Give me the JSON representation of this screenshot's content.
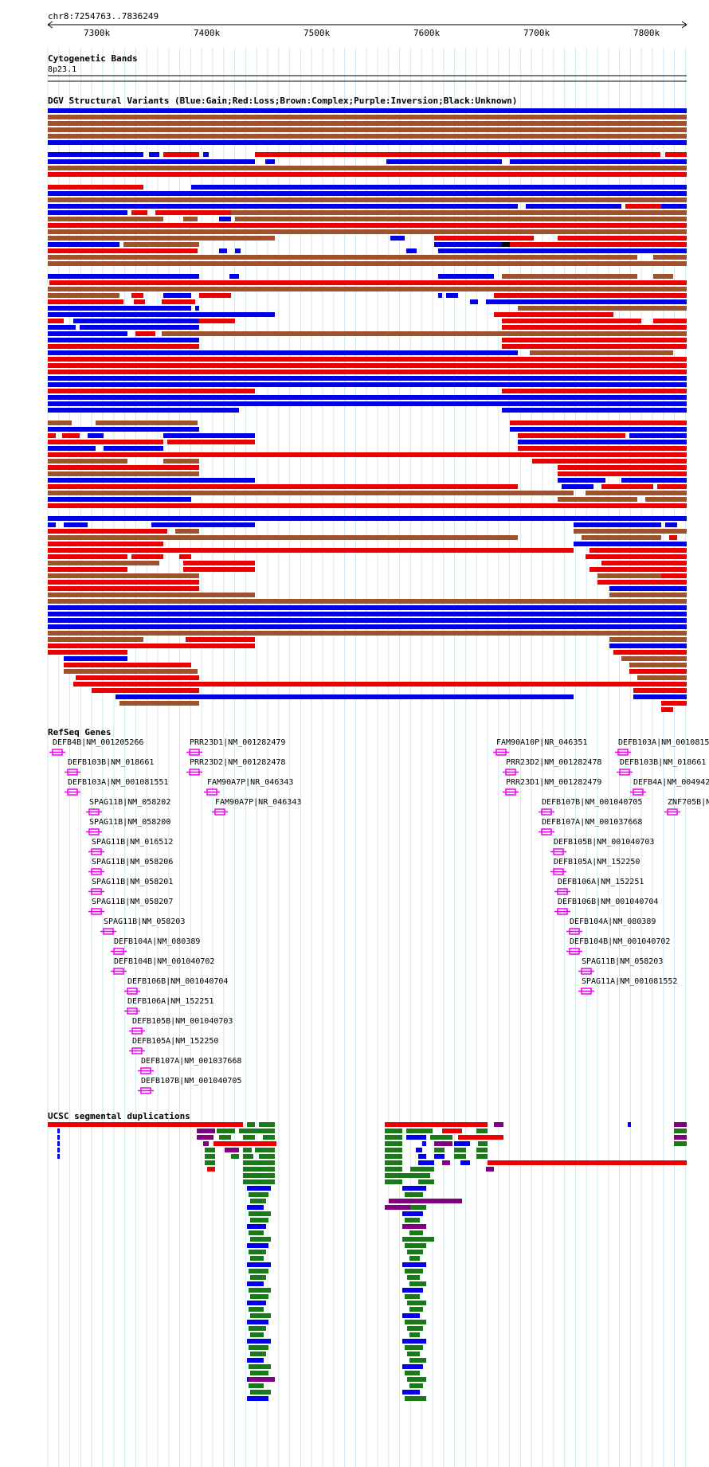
{
  "header": {
    "location": "chr8:7254763..7836249"
  },
  "ruler": {
    "ticks": [
      "7300k",
      "7400k",
      "7500k",
      "7600k",
      "7700k",
      "7800k"
    ]
  },
  "cytoband": {
    "title": "Cytogenetic Bands",
    "band": "8p23.1"
  },
  "dgv": {
    "title": "DGV Structural Variants (Blue:Gain;Red:Loss;Brown:Complex;Purple:Inversion;Black:Unknown)",
    "colors": {
      "gain": "#0000ee",
      "loss": "#ee0000",
      "complex": "#a0522d",
      "inversion": "#800080",
      "unknown": "#000000"
    }
  },
  "refseq": {
    "title": "RefSeq Genes",
    "color": "#ee00ee",
    "genes": [
      "DEFB4B|NM_001205266",
      "DEFB103B|NM_018661",
      "DEFB103A|NM_001081551",
      "SPAG11B|NM_058202",
      "SPAG11B|NM_058200",
      "SPAG11B|NM_016512",
      "SPAG11B|NM_058206",
      "SPAG11B|NM_058201",
      "SPAG11B|NM_058207",
      "SPAG11B|NM_058203",
      "DEFB104A|NM_080389",
      "DEFB104B|NM_001040702",
      "DEFB106B|NM_001040704",
      "DEFB106A|NM_152251",
      "DEFB105B|NM_001040703",
      "DEFB105A|NM_152250",
      "DEFB107A|NM_001037668",
      "DEFB107B|NM_001040705",
      "PRR23D1|NM_001282479",
      "PRR23D2|NM_001282478",
      "FAM90A7P|NR_046343",
      "FAM90A7P|NR_046343",
      "FAM90A10P|NR_046351",
      "PRR23D2|NM_001282478",
      "PRR23D1|NM_001282479",
      "DEFB107B|NM_001040705",
      "DEFB107A|NM_001037668",
      "DEFB105B|NM_001040703",
      "DEFB105A|NM_152250",
      "DEFB106A|NM_152251",
      "DEFB106B|NM_001040704",
      "DEFB104A|NM_080389",
      "DEFB104B|NM_001040702",
      "SPAG11B|NM_058203",
      "SPAG11A|NM_001081552",
      "DEFB103A|NM_0010815",
      "DEFB103B|NM_018661",
      "DEFB4A|NM_004942",
      "ZNF705B|NM"
    ]
  },
  "segdup": {
    "title": "UCSC segmental duplications",
    "colors": {
      "red": "#ee0000",
      "green": "#1a7a1a",
      "blue": "#0000ee",
      "purple": "#800080"
    }
  }
}
